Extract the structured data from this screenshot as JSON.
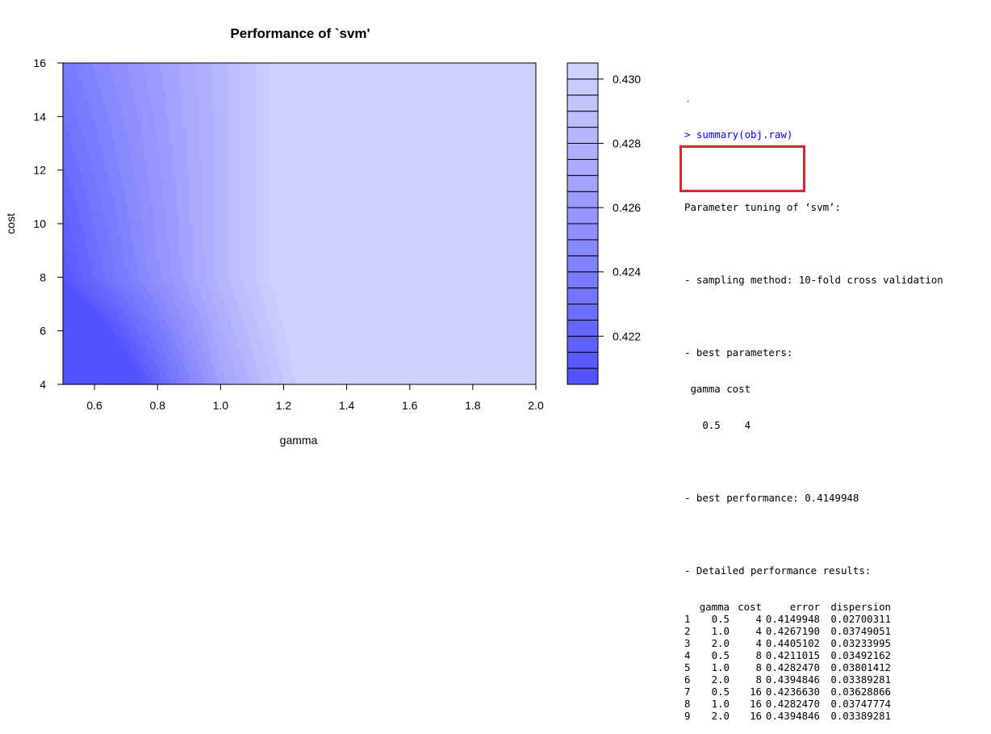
{
  "chart_data": {
    "type": "heatmap",
    "title": "Performance of `svm'",
    "xlabel": "gamma",
    "ylabel": "cost",
    "xlim": [
      0.5,
      2.0
    ],
    "ylim": [
      4,
      16
    ],
    "x_ticks": [
      "0.6",
      "0.8",
      "1.0",
      "1.2",
      "1.4",
      "1.6",
      "1.8",
      "2.0"
    ],
    "y_ticks": [
      "4",
      "6",
      "8",
      "10",
      "12",
      "14",
      "16"
    ],
    "x": [
      0.5,
      1.0,
      2.0
    ],
    "y": [
      4,
      8,
      16
    ],
    "z": [
      [
        0.4149948,
        0.426719,
        0.4405102
      ],
      [
        0.4211015,
        0.428247,
        0.4394846
      ],
      [
        0.423663,
        0.428247,
        0.4394846
      ]
    ],
    "colorbar": {
      "ticks": [
        "0.430",
        "0.428",
        "0.426",
        "0.424",
        "0.422"
      ],
      "range": [
        0.4205,
        0.4305
      ],
      "levels": 20,
      "low_color": "#4f4fff",
      "high_color": "#d4d4ff"
    }
  },
  "console": {
    "command": "> summary(obj.raw)",
    "heading": "Parameter tuning of ‘svm’:",
    "sampling": "- sampling method: 10-fold cross validation",
    "best_params_label": "- best parameters:",
    "best_params_header": " gamma cost",
    "best_params_values": "   0.5    4",
    "best_performance": "- best performance: 0.4149948",
    "detailed_label": "- Detailed performance results:",
    "table_headers": [
      "gamma",
      "cost",
      "error",
      "dispersion"
    ],
    "table_rows": [
      [
        "1",
        "0.5",
        "4",
        "0.4149948",
        "0.02700311"
      ],
      [
        "2",
        "1.0",
        "4",
        "0.4267190",
        "0.03749051"
      ],
      [
        "3",
        "2.0",
        "4",
        "0.4405102",
        "0.03233995"
      ],
      [
        "4",
        "0.5",
        "8",
        "0.4211015",
        "0.03492162"
      ],
      [
        "5",
        "1.0",
        "8",
        "0.4282470",
        "0.03801412"
      ],
      [
        "6",
        "2.0",
        "8",
        "0.4394846",
        "0.03389281"
      ],
      [
        "7",
        "0.5",
        "16",
        "0.4236630",
        "0.03628866"
      ],
      [
        "8",
        "1.0",
        "16",
        "0.4282470",
        "0.03747774"
      ],
      [
        "9",
        "2.0",
        "16",
        "0.4394846",
        "0.03389281"
      ]
    ],
    "highlight_color": "#e0252b"
  }
}
